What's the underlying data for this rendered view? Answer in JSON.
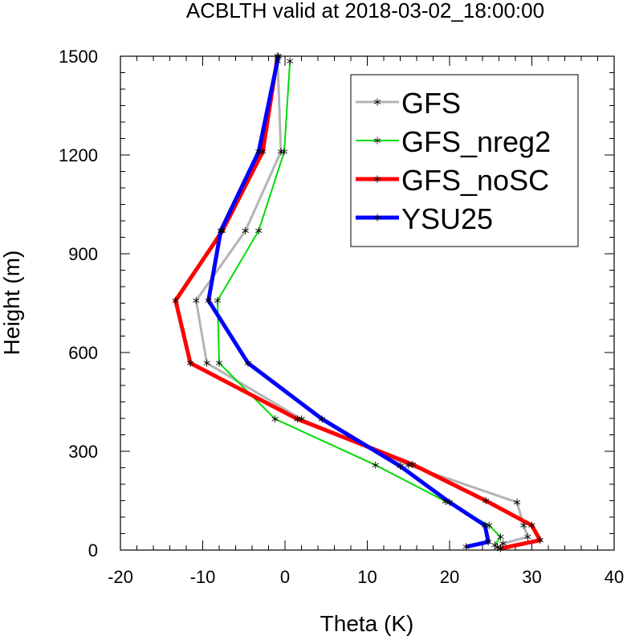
{
  "chart_data": {
    "type": "line",
    "title": "ACBLTH valid at 2018-03-02_18:00:00",
    "xlabel": "Theta (K)",
    "ylabel": "Height (m)",
    "xlim": [
      -20,
      40
    ],
    "ylim": [
      0,
      1500
    ],
    "x_ticks": [
      -20,
      -10,
      0,
      10,
      20,
      30,
      40
    ],
    "y_ticks": [
      0,
      300,
      600,
      900,
      1200,
      1500
    ],
    "x_tick_labels": [
      "-20",
      "-10",
      "0",
      "10",
      "20",
      "30",
      "40"
    ],
    "y_tick_labels": [
      "0",
      "300",
      "600",
      "900",
      "1200",
      "1500"
    ],
    "legend_position": "top-right",
    "series": [
      {
        "name": "GFS",
        "color": "#b4b4b4",
        "marker": "asterisk",
        "points": [
          [
            25.8,
            8
          ],
          [
            26.5,
            20
          ],
          [
            29.5,
            40
          ],
          [
            29.0,
            75
          ],
          [
            28.2,
            145
          ],
          [
            15.0,
            258
          ],
          [
            2.0,
            398
          ],
          [
            -9.5,
            568
          ],
          [
            -10.8,
            758
          ],
          [
            -4.8,
            970
          ],
          [
            -0.5,
            1210
          ],
          [
            -0.9,
            1485
          ]
        ]
      },
      {
        "name": "GFS_nreg2",
        "color": "#00dc00",
        "marker": "asterisk",
        "points": [
          [
            25.5,
            15
          ],
          [
            26.2,
            40
          ],
          [
            24.8,
            75
          ],
          [
            19.5,
            148
          ],
          [
            11.0,
            258
          ],
          [
            -1.2,
            398
          ],
          [
            -8.0,
            568
          ],
          [
            -8.2,
            758
          ],
          [
            -3.2,
            970
          ],
          [
            -0.1,
            1210
          ],
          [
            0.6,
            1485
          ]
        ]
      },
      {
        "name": "GFS_noSC",
        "color": "#ff0000",
        "marker": "asterisk",
        "points": [
          [
            26.2,
            5
          ],
          [
            31.0,
            30
          ],
          [
            30.0,
            75
          ],
          [
            24.4,
            150
          ],
          [
            15.5,
            260
          ],
          [
            1.5,
            398
          ],
          [
            -11.5,
            568
          ],
          [
            -13.3,
            758
          ],
          [
            -7.6,
            970
          ],
          [
            -2.7,
            1210
          ],
          [
            -0.9,
            1500
          ]
        ]
      },
      {
        "name": "YSU25",
        "color": "#0000ff",
        "marker": "asterisk",
        "points": [
          [
            22.0,
            10
          ],
          [
            24.7,
            25
          ],
          [
            24.3,
            75
          ],
          [
            20.0,
            145
          ],
          [
            14.0,
            255
          ],
          [
            4.5,
            398
          ],
          [
            -4.5,
            568
          ],
          [
            -9.3,
            758
          ],
          [
            -7.8,
            970
          ],
          [
            -3.2,
            1210
          ],
          [
            -0.8,
            1500
          ]
        ]
      }
    ]
  }
}
